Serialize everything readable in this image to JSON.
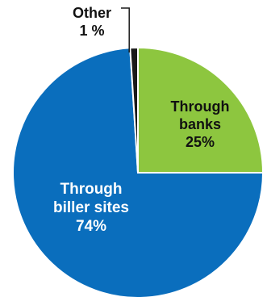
{
  "chart_data": {
    "type": "pie",
    "title": "",
    "slices": [
      {
        "name": "Through banks",
        "label_lines": [
          "Through",
          "banks"
        ],
        "value": 25,
        "value_label": "25%",
        "color": "#8dc63f",
        "text_color": "#111111"
      },
      {
        "name": "Through biller sites",
        "label_lines": [
          "Through",
          "biller sites"
        ],
        "value": 74,
        "value_label": "74%",
        "color": "#0a6ebd",
        "text_color": "#ffffff"
      },
      {
        "name": "Other",
        "label_lines": [
          "Other"
        ],
        "value": 1,
        "value_label": "1 %",
        "color": "#1a1a1a",
        "text_color": "#111111"
      }
    ],
    "start_angle_deg": 0,
    "direction": "clockwise",
    "legend": "none",
    "outline_color": "#ffffff"
  }
}
